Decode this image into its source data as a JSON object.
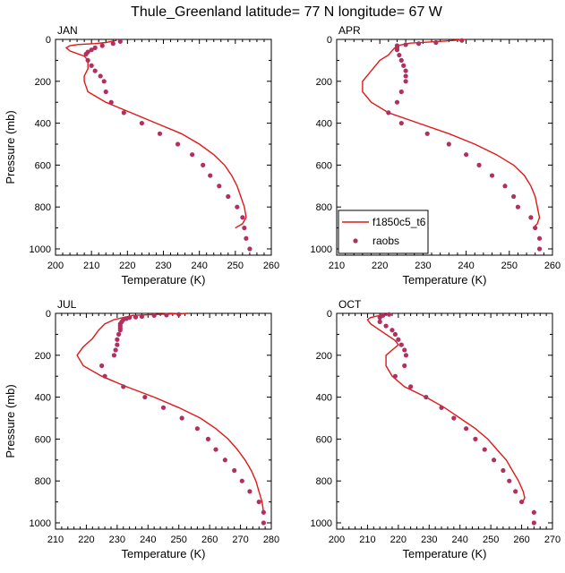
{
  "figure": {
    "title": "Thule_Greenland  latitude= 77 N longitude= 67 W"
  },
  "legend": {
    "model_label": "f1850c5_t6",
    "obs_label": "raobs",
    "model_color": "#e01818",
    "obs_color": "#b03060",
    "panel": "APR",
    "placement": "lower-left"
  },
  "chart_data": [
    {
      "type": "line",
      "panel": "JAN",
      "xlabel": "Temperature (K)",
      "ylabel": "Pressure (mb)",
      "xlim": [
        200,
        260
      ],
      "xticks": [
        200,
        210,
        220,
        230,
        240,
        250,
        260
      ],
      "ylim": [
        1000,
        0
      ],
      "yticks": [
        0,
        200,
        400,
        600,
        800,
        1000
      ],
      "model": {
        "name": "f1850c5_t6",
        "points": [
          [
            217,
            5
          ],
          [
            214,
            15
          ],
          [
            211,
            20
          ],
          [
            206,
            25
          ],
          [
            204,
            30
          ],
          [
            203,
            40
          ],
          [
            204,
            55
          ],
          [
            208,
            80
          ],
          [
            209,
            100
          ],
          [
            209,
            140
          ],
          [
            208,
            175
          ],
          [
            208,
            200
          ],
          [
            209,
            250
          ],
          [
            214,
            300
          ],
          [
            221,
            350
          ],
          [
            228,
            400
          ],
          [
            235,
            450
          ],
          [
            240,
            500
          ],
          [
            244,
            550
          ],
          [
            247,
            600
          ],
          [
            249,
            650
          ],
          [
            250.5,
            700
          ],
          [
            251.5,
            750
          ],
          [
            252.5,
            800
          ],
          [
            253,
            850
          ],
          [
            252,
            880
          ],
          [
            250,
            900
          ]
        ]
      },
      "obs": {
        "name": "raobs",
        "points": [
          [
            218,
            10
          ],
          [
            216,
            20
          ],
          [
            213,
            30
          ],
          [
            211,
            40
          ],
          [
            210,
            50
          ],
          [
            209,
            60
          ],
          [
            208.5,
            70
          ],
          [
            209,
            100
          ],
          [
            210,
            125
          ],
          [
            211,
            150
          ],
          [
            212.5,
            175
          ],
          [
            213.5,
            200
          ],
          [
            214,
            250
          ],
          [
            215.5,
            300
          ],
          [
            219,
            350
          ],
          [
            224,
            400
          ],
          [
            229,
            450
          ],
          [
            234,
            500
          ],
          [
            238,
            550
          ],
          [
            241,
            600
          ],
          [
            243,
            650
          ],
          [
            245.5,
            700
          ],
          [
            248,
            750
          ],
          [
            250.5,
            800
          ],
          [
            252,
            850
          ],
          [
            252.5,
            900
          ],
          [
            253,
            950
          ],
          [
            254,
            1000
          ]
        ]
      }
    },
    {
      "type": "line",
      "panel": "APR",
      "xlabel": "Temperature (K)",
      "ylabel": "",
      "xlim": [
        210,
        260
      ],
      "xticks": [
        210,
        220,
        230,
        240,
        250,
        260
      ],
      "ylim": [
        1000,
        0
      ],
      "yticks": [
        0,
        200,
        400,
        600,
        800,
        1000
      ],
      "model": {
        "name": "f1850c5_t6",
        "points": [
          [
            240,
            0
          ],
          [
            235,
            8
          ],
          [
            227,
            18
          ],
          [
            224,
            30
          ],
          [
            223,
            50
          ],
          [
            222,
            75
          ],
          [
            220,
            100
          ],
          [
            218,
            150
          ],
          [
            216,
            200
          ],
          [
            216,
            250
          ],
          [
            218,
            300
          ],
          [
            222,
            350
          ],
          [
            229,
            400
          ],
          [
            236,
            450
          ],
          [
            242,
            500
          ],
          [
            247,
            550
          ],
          [
            251,
            600
          ],
          [
            253.5,
            650
          ],
          [
            255,
            700
          ],
          [
            256,
            750
          ],
          [
            256.5,
            800
          ],
          [
            257,
            850
          ],
          [
            256.5,
            880
          ],
          [
            255.5,
            900
          ]
        ]
      },
      "obs": {
        "name": "raobs",
        "points": [
          [
            239,
            5
          ],
          [
            233,
            15
          ],
          [
            229,
            20
          ],
          [
            226,
            25
          ],
          [
            224,
            30
          ],
          [
            224,
            40
          ],
          [
            224,
            50
          ],
          [
            224.5,
            75
          ],
          [
            225,
            100
          ],
          [
            225.5,
            125
          ],
          [
            226,
            150
          ],
          [
            226,
            175
          ],
          [
            226,
            200
          ],
          [
            225,
            250
          ],
          [
            224,
            300
          ],
          [
            222,
            350
          ],
          [
            225,
            400
          ],
          [
            231,
            450
          ],
          [
            236,
            500
          ],
          [
            240,
            550
          ],
          [
            243,
            600
          ],
          [
            246,
            650
          ],
          [
            249,
            700
          ],
          [
            251,
            750
          ],
          [
            252,
            800
          ],
          [
            255,
            850
          ],
          [
            256,
            900
          ],
          [
            257,
            950
          ],
          [
            257,
            1000
          ]
        ]
      }
    },
    {
      "type": "line",
      "panel": "JUL",
      "xlabel": "Temperature (K)",
      "ylabel": "Pressure (mb)",
      "xlim": [
        210,
        280
      ],
      "xticks": [
        210,
        220,
        230,
        240,
        250,
        260,
        270,
        280
      ],
      "ylim": [
        1000,
        0
      ],
      "yticks": [
        0,
        200,
        400,
        600,
        800,
        1000
      ],
      "model": {
        "name": "f1850c5_t6",
        "points": [
          [
            253,
            0
          ],
          [
            243,
            5
          ],
          [
            235,
            10
          ],
          [
            232,
            20
          ],
          [
            229,
            30
          ],
          [
            226,
            50
          ],
          [
            224,
            80
          ],
          [
            222,
            120
          ],
          [
            219,
            160
          ],
          [
            217,
            200
          ],
          [
            219,
            250
          ],
          [
            225,
            300
          ],
          [
            233,
            350
          ],
          [
            242,
            400
          ],
          [
            250,
            450
          ],
          [
            257,
            500
          ],
          [
            262,
            550
          ],
          [
            266,
            600
          ],
          [
            269,
            650
          ],
          [
            271.5,
            700
          ],
          [
            273.5,
            750
          ],
          [
            275,
            800
          ],
          [
            276,
            850
          ],
          [
            277,
            900
          ],
          [
            277.5,
            950
          ]
        ]
      },
      "obs": {
        "name": "raobs",
        "points": [
          [
            250,
            5
          ],
          [
            246,
            8
          ],
          [
            242,
            10
          ],
          [
            238,
            15
          ],
          [
            236,
            18
          ],
          [
            234,
            20
          ],
          [
            233,
            25
          ],
          [
            232,
            30
          ],
          [
            231.5,
            40
          ],
          [
            231,
            50
          ],
          [
            231,
            60
          ],
          [
            231,
            70
          ],
          [
            231,
            80
          ],
          [
            230.5,
            100
          ],
          [
            230,
            125
          ],
          [
            230,
            150
          ],
          [
            229.5,
            175
          ],
          [
            229,
            200
          ],
          [
            225,
            250
          ],
          [
            226,
            300
          ],
          [
            232,
            350
          ],
          [
            239,
            400
          ],
          [
            245,
            450
          ],
          [
            251,
            500
          ],
          [
            256,
            550
          ],
          [
            259.5,
            600
          ],
          [
            262,
            650
          ],
          [
            265,
            700
          ],
          [
            268,
            750
          ],
          [
            270.5,
            800
          ],
          [
            273,
            850
          ],
          [
            276,
            900
          ],
          [
            277.5,
            950
          ],
          [
            277.5,
            1000
          ]
        ]
      }
    },
    {
      "type": "line",
      "panel": "OCT",
      "xlabel": "Temperature (K)",
      "ylabel": "",
      "xlim": [
        200,
        270
      ],
      "xticks": [
        200,
        210,
        220,
        230,
        240,
        250,
        260,
        270
      ],
      "ylim": [
        1000,
        0
      ],
      "yticks": [
        0,
        200,
        400,
        600,
        800,
        1000
      ],
      "model": {
        "name": "f1850c5_t6",
        "points": [
          [
            218,
            0
          ],
          [
            214,
            10
          ],
          [
            211,
            20
          ],
          [
            210,
            30
          ],
          [
            211,
            50
          ],
          [
            213,
            70
          ],
          [
            215,
            90
          ],
          [
            217,
            110
          ],
          [
            219,
            130
          ],
          [
            220,
            150
          ],
          [
            218,
            175
          ],
          [
            216,
            200
          ],
          [
            216,
            250
          ],
          [
            218,
            300
          ],
          [
            222,
            350
          ],
          [
            229,
            400
          ],
          [
            235,
            450
          ],
          [
            240,
            500
          ],
          [
            245,
            550
          ],
          [
            249,
            600
          ],
          [
            252,
            650
          ],
          [
            255,
            700
          ],
          [
            257,
            750
          ],
          [
            259,
            800
          ],
          [
            260.5,
            850
          ],
          [
            261,
            880
          ],
          [
            260,
            910
          ]
        ]
      },
      "obs": {
        "name": "raobs",
        "points": [
          [
            217,
            5
          ],
          [
            215,
            10
          ],
          [
            214,
            20
          ],
          [
            214,
            40
          ],
          [
            216,
            60
          ],
          [
            218,
            80
          ],
          [
            219,
            100
          ],
          [
            220,
            125
          ],
          [
            221,
            150
          ],
          [
            222,
            175
          ],
          [
            222.5,
            200
          ],
          [
            222,
            250
          ],
          [
            219,
            300
          ],
          [
            224,
            350
          ],
          [
            229,
            400
          ],
          [
            234,
            450
          ],
          [
            238,
            500
          ],
          [
            242,
            550
          ],
          [
            245,
            600
          ],
          [
            248,
            650
          ],
          [
            251,
            700
          ],
          [
            254,
            750
          ],
          [
            256,
            800
          ],
          [
            258,
            850
          ],
          [
            260,
            900
          ],
          [
            264,
            950
          ],
          [
            264,
            1000
          ]
        ]
      }
    }
  ]
}
